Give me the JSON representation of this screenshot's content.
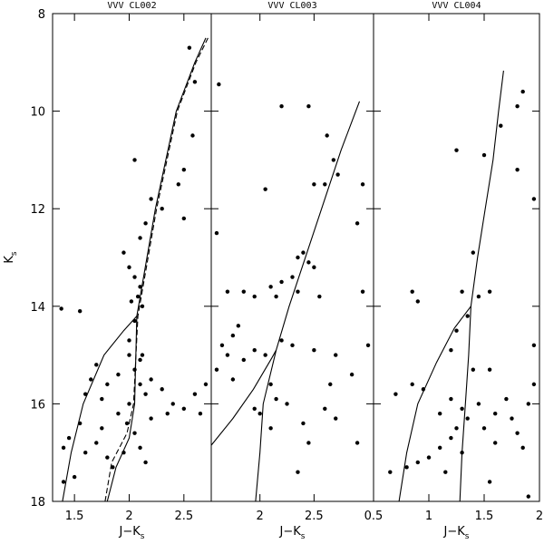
{
  "chart_data": [
    {
      "type": "scatter",
      "title": "VVV CL002",
      "x_label": "J−K",
      "x_label_sub": "s",
      "y_label": "K",
      "y_label_sub": "s",
      "xlim": [
        1.3,
        2.75
      ],
      "xticks": [
        1.5,
        2,
        2.5
      ],
      "ylim": [
        8,
        18
      ],
      "yticks": [
        8,
        10,
        12,
        14,
        16,
        18
      ],
      "y_inverted": true,
      "color": "#000000",
      "points": {
        "x": [
          1.38,
          1.55,
          2.05,
          2.55,
          2.6,
          2.58,
          2.5,
          2.45,
          2.3,
          2.2,
          2.5,
          2.15,
          2.1,
          1.95,
          2.0,
          2.05,
          2.1,
          2.08,
          2.02,
          2.12,
          2.05,
          1.7,
          1.65,
          1.8,
          1.9,
          2.0,
          2.05,
          2.1,
          2.15,
          2.2,
          2.3,
          2.4,
          2.5,
          2.6,
          2.7,
          2.65,
          1.75,
          1.6,
          1.55,
          1.45,
          1.4,
          1.6,
          1.7,
          1.8,
          1.75,
          1.9,
          2.0,
          2.05,
          2.1,
          1.95,
          1.85,
          1.5,
          1.4,
          2.15,
          2.2,
          2.35,
          2.1,
          2.0,
          2.12,
          1.98
        ],
        "y": [
          14.05,
          14.1,
          11.0,
          8.7,
          9.4,
          10.5,
          11.2,
          11.5,
          12.0,
          11.8,
          12.2,
          12.3,
          12.6,
          12.9,
          13.2,
          13.4,
          13.6,
          13.8,
          13.9,
          14.0,
          14.3,
          15.2,
          15.5,
          15.6,
          15.4,
          15.0,
          15.3,
          15.6,
          15.8,
          15.5,
          15.7,
          16.0,
          16.1,
          15.8,
          15.6,
          16.2,
          15.9,
          15.8,
          16.4,
          16.7,
          16.9,
          17.0,
          16.8,
          17.1,
          16.5,
          16.2,
          16.0,
          16.6,
          16.9,
          17.0,
          17.3,
          17.5,
          17.6,
          17.2,
          16.3,
          16.2,
          15.1,
          14.7,
          15.0,
          16.4
        ]
      },
      "lines": [
        {
          "dashed": false,
          "x": [
            1.39,
            1.47,
            1.58,
            1.77,
            1.95,
            2.07,
            2.24,
            2.43,
            2.6,
            2.7
          ],
          "y": [
            18,
            17,
            16,
            15,
            14.5,
            14.2,
            12,
            10,
            9.0,
            8.5
          ]
        },
        {
          "dashed": false,
          "x": [
            1.8,
            1.88,
            2.0,
            2.05,
            2.07
          ],
          "y": [
            18,
            17.3,
            16.7,
            16,
            14.2
          ]
        },
        {
          "dashed": true,
          "x": [
            1.78,
            1.84,
            1.98,
            2.04,
            2.08,
            2.25,
            2.44,
            2.61,
            2.72
          ],
          "y": [
            18,
            17.2,
            16.6,
            16,
            14.2,
            12,
            10,
            9.0,
            8.5
          ]
        }
      ]
    },
    {
      "type": "scatter",
      "title": "VVV CL003",
      "x_label": "J−K",
      "x_label_sub": "s",
      "xlim": [
        1.55,
        3.05
      ],
      "xticks": [
        2,
        2.5
      ],
      "ylim": [
        8,
        18
      ],
      "y_inverted": true,
      "color": "#000000",
      "points": {
        "x": [
          1.62,
          2.2,
          2.45,
          2.62,
          2.68,
          2.72,
          2.5,
          2.6,
          2.95,
          2.05,
          1.6,
          2.9,
          2.4,
          2.35,
          2.45,
          2.3,
          2.5,
          2.2,
          2.1,
          1.85,
          1.7,
          1.95,
          2.15,
          2.35,
          2.55,
          2.95,
          1.8,
          1.75,
          1.65,
          1.7,
          1.85,
          1.95,
          2.05,
          2.2,
          2.3,
          2.5,
          2.7,
          2.85,
          3.0,
          1.6,
          1.75,
          2.1,
          2.15,
          2.25,
          2.4,
          2.6,
          2.0,
          2.1,
          2.35,
          2.45,
          2.7,
          2.9,
          1.95,
          2.65
        ],
        "y": [
          9.45,
          9.9,
          9.9,
          10.5,
          11.0,
          11.3,
          11.5,
          11.5,
          11.5,
          11.6,
          12.5,
          12.3,
          12.9,
          13.0,
          13.1,
          13.4,
          13.2,
          13.5,
          13.6,
          13.7,
          13.7,
          13.8,
          13.8,
          13.7,
          13.8,
          13.7,
          14.4,
          14.6,
          14.8,
          15.0,
          15.1,
          14.9,
          15.0,
          14.7,
          14.8,
          14.9,
          15.0,
          15.4,
          14.8,
          15.3,
          15.5,
          15.6,
          15.9,
          16.0,
          16.4,
          16.1,
          16.2,
          16.5,
          17.4,
          16.8,
          16.3,
          16.8,
          16.1,
          15.6
        ]
      },
      "lines": [
        {
          "dashed": false,
          "x": [
            1.55,
            1.75,
            1.94,
            2.11,
            2.15,
            2.27,
            2.57,
            2.75,
            2.92
          ],
          "y": [
            16.85,
            16.3,
            15.7,
            15.06,
            14.9,
            14,
            12,
            10.8,
            9.8
          ]
        },
        {
          "dashed": false,
          "x": [
            1.96,
            2.0,
            2.03,
            2.15
          ],
          "y": [
            18,
            17,
            16,
            14.9
          ]
        }
      ]
    },
    {
      "type": "scatter",
      "title": "VVV CL004",
      "x_label": "J−K",
      "x_label_sub": "s",
      "xlim": [
        0.5,
        2.0
      ],
      "xticks": [
        0.5,
        1,
        1.5,
        2
      ],
      "ylim": [
        8,
        18
      ],
      "y_inverted": true,
      "color": "#000000",
      "points": {
        "x": [
          1.85,
          1.8,
          1.65,
          1.5,
          1.25,
          1.8,
          1.95,
          1.4,
          0.85,
          0.9,
          1.3,
          1.45,
          1.55,
          1.35,
          1.25,
          1.2,
          1.4,
          1.95,
          0.7,
          0.85,
          1.2,
          1.3,
          1.25,
          1.35,
          1.45,
          1.5,
          1.6,
          1.7,
          1.75,
          1.8,
          1.9,
          1.95,
          1.85,
          1.6,
          1.2,
          1.1,
          1.0,
          0.9,
          0.8,
          0.65,
          1.15,
          1.3,
          1.1,
          0.95,
          1.55,
          1.9,
          1.55
        ],
        "y": [
          9.6,
          9.9,
          10.3,
          10.9,
          10.8,
          11.2,
          11.8,
          12.9,
          13.7,
          13.9,
          13.7,
          13.8,
          13.7,
          14.2,
          14.5,
          14.9,
          15.3,
          14.8,
          15.8,
          15.6,
          15.9,
          16.1,
          16.5,
          16.3,
          16.0,
          16.5,
          16.2,
          15.9,
          16.3,
          16.6,
          16.0,
          15.6,
          16.9,
          16.8,
          16.7,
          16.9,
          17.1,
          17.2,
          17.3,
          17.4,
          17.4,
          17.0,
          16.2,
          15.7,
          17.6,
          17.9,
          15.3
        ]
      },
      "lines": [
        {
          "dashed": false,
          "x": [
            0.73,
            0.8,
            0.9,
            1.07,
            1.23,
            1.38,
            1.44,
            1.51,
            1.58,
            1.63,
            1.675
          ],
          "y": [
            18,
            17,
            16,
            15.15,
            14.45,
            14.0,
            13,
            12,
            11,
            10,
            9.17
          ]
        },
        {
          "dashed": false,
          "x": [
            1.28,
            1.3,
            1.33,
            1.36,
            1.38
          ],
          "y": [
            18,
            17,
            16,
            15,
            14.0
          ]
        }
      ]
    }
  ]
}
